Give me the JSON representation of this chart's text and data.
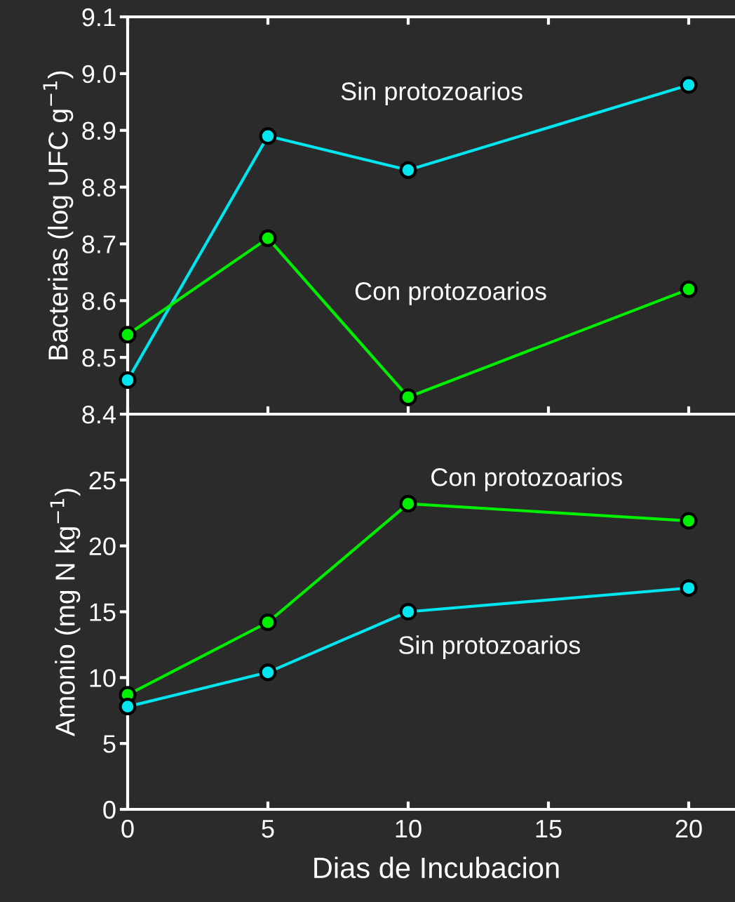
{
  "chart_data": [
    {
      "type": "line",
      "ylabel": "Bacterias (log UFC g$^{−1}$)",
      "x": [
        0,
        5,
        10,
        20
      ],
      "xlim": [
        0,
        21.65
      ],
      "xticks": [
        0,
        5,
        10,
        15,
        20
      ],
      "ylim": [
        8.4,
        9.1
      ],
      "yticks": [
        8.4,
        8.5,
        8.6,
        8.7,
        8.8,
        8.9,
        {
          "value": 9.0,
          "label": "9.0"
        },
        9.1
      ],
      "tick_labels": "y",
      "marker": "circle",
      "grid": false,
      "series": [
        {
          "name": "Sin protozoarios",
          "color": "#00e5ee",
          "values": [
            8.46,
            8.89,
            8.83,
            8.98
          ]
        },
        {
          "name": "Con protozoarios",
          "color": "#00ee00",
          "values": [
            8.54,
            8.71,
            8.43,
            8.62
          ]
        }
      ]
    },
    {
      "type": "line",
      "ylabel": "Amonio (mg N kg$^{−1}$)",
      "xlabel": "Dias de Incubacion",
      "x": [
        0,
        5,
        10,
        20
      ],
      "xlim": [
        0,
        21.65
      ],
      "xticks": [
        0,
        5,
        10,
        15,
        20
      ],
      "ylim": [
        0,
        30
      ],
      "yticks": [
        0,
        5,
        10,
        15,
        20,
        25
      ],
      "marker": "circle",
      "grid": false,
      "series": [
        {
          "name": "Con protozoarios",
          "color": "#00ee00",
          "values": [
            8.7,
            14.2,
            23.2,
            21.9
          ]
        },
        {
          "name": "Sin protozoarios",
          "color": "#00e5ee",
          "values": [
            7.8,
            10.4,
            15.0,
            16.8
          ]
        }
      ]
    }
  ]
}
